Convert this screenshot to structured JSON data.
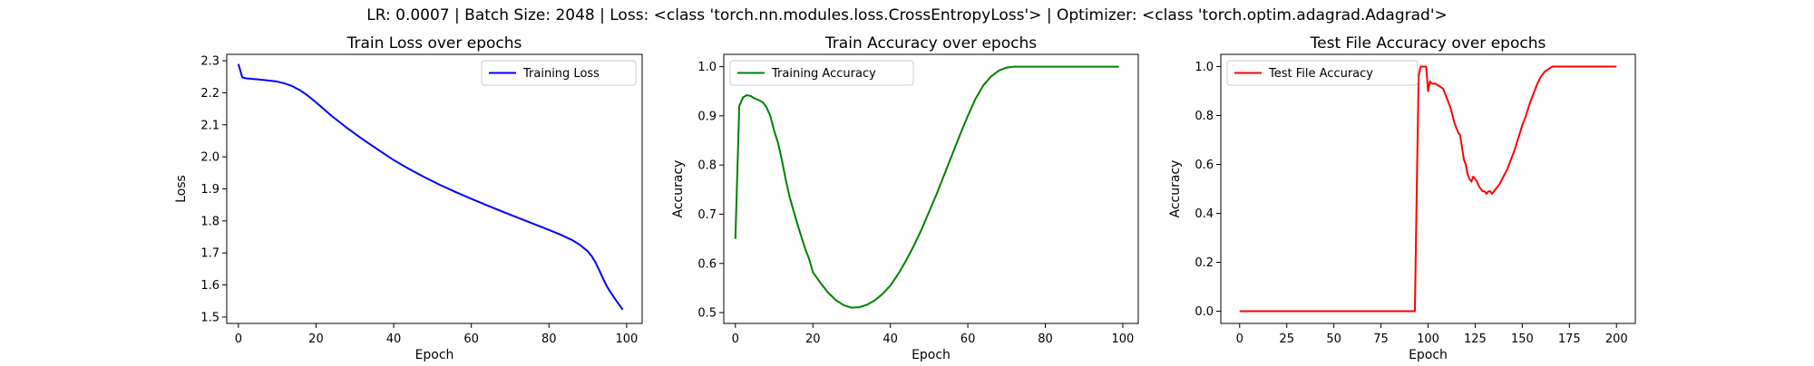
{
  "figure": {
    "suptitle": "LR: 0.0007 | Batch Size: 2048 | Loss: <class 'torch.nn.modules.loss.CrossEntropyLoss'> | Optimizer: <class 'torch.optim.adagrad.Adagrad'>"
  },
  "chart_data": [
    {
      "type": "line",
      "title": "Train Loss over epochs",
      "xlabel": "Epoch",
      "ylabel": "Loss",
      "xlim": [
        -3,
        104
      ],
      "ylim": [
        1.48,
        2.32
      ],
      "xticks": [
        0,
        20,
        40,
        60,
        80,
        100
      ],
      "yticks": [
        1.5,
        1.6,
        1.7,
        1.8,
        1.9,
        2.0,
        2.1,
        2.2,
        2.3
      ],
      "ytick_labels": [
        "1.5",
        "1.6",
        "1.7",
        "1.8",
        "1.9",
        "2.0",
        "2.1",
        "2.2",
        "2.3"
      ],
      "legend_position": "upper-right",
      "grid": false,
      "series": [
        {
          "name": "Training Loss",
          "color": "#0000ff",
          "x": [
            0,
            1,
            2,
            5,
            8,
            10,
            12,
            14,
            16,
            18,
            20,
            24,
            28,
            32,
            36,
            40,
            44,
            48,
            52,
            56,
            60,
            64,
            68,
            72,
            76,
            80,
            83,
            86,
            88,
            90,
            91,
            92,
            93,
            94,
            95,
            96,
            97,
            98,
            99
          ],
          "y": [
            2.29,
            2.248,
            2.245,
            2.242,
            2.238,
            2.235,
            2.229,
            2.22,
            2.207,
            2.19,
            2.17,
            2.128,
            2.09,
            2.055,
            2.022,
            1.99,
            1.962,
            1.936,
            1.912,
            1.89,
            1.869,
            1.849,
            1.829,
            1.81,
            1.791,
            1.772,
            1.757,
            1.74,
            1.725,
            1.705,
            1.69,
            1.67,
            1.645,
            1.618,
            1.594,
            1.575,
            1.557,
            1.54,
            1.523
          ]
        }
      ]
    },
    {
      "type": "line",
      "title": "Train Accuracy over epochs",
      "xlabel": "Epoch",
      "ylabel": "Accuracy",
      "xlim": [
        -3,
        104
      ],
      "ylim": [
        0.478,
        1.025
      ],
      "xticks": [
        0,
        20,
        40,
        60,
        80,
        100
      ],
      "yticks": [
        0.5,
        0.6,
        0.7,
        0.8,
        0.9,
        1.0
      ],
      "ytick_labels": [
        "0.5",
        "0.6",
        "0.7",
        "0.8",
        "0.9",
        "1.0"
      ],
      "legend_position": "upper-left",
      "grid": false,
      "series": [
        {
          "name": "Training Accuracy",
          "color": "#008000",
          "x": [
            0,
            1,
            2,
            3,
            4,
            5,
            6,
            7,
            8,
            9,
            10,
            11,
            12,
            13,
            14,
            16,
            18,
            19,
            20,
            22,
            24,
            26,
            28,
            30,
            32,
            34,
            36,
            38,
            40,
            42,
            44,
            46,
            48,
            50,
            52,
            54,
            56,
            58,
            60,
            62,
            64,
            66,
            68,
            70,
            72,
            74,
            80,
            90,
            99
          ],
          "y": [
            0.65,
            0.92,
            0.938,
            0.942,
            0.94,
            0.935,
            0.932,
            0.928,
            0.918,
            0.9,
            0.87,
            0.845,
            0.81,
            0.77,
            0.735,
            0.68,
            0.63,
            0.61,
            0.582,
            0.56,
            0.54,
            0.525,
            0.515,
            0.51,
            0.511,
            0.516,
            0.525,
            0.538,
            0.555,
            0.578,
            0.605,
            0.635,
            0.668,
            0.705,
            0.742,
            0.782,
            0.822,
            0.862,
            0.9,
            0.935,
            0.962,
            0.98,
            0.992,
            0.998,
            1.0,
            1.0,
            1.0,
            1.0,
            1.0
          ]
        }
      ]
    },
    {
      "type": "line",
      "title": "Test File Accuracy over epochs",
      "xlabel": "Epoch",
      "ylabel": "Accuracy",
      "xlim": [
        -10,
        210
      ],
      "ylim": [
        -0.05,
        1.05
      ],
      "xticks": [
        0,
        25,
        50,
        75,
        100,
        125,
        150,
        175,
        200
      ],
      "yticks": [
        0.0,
        0.2,
        0.4,
        0.6,
        0.8,
        1.0
      ],
      "ytick_labels": [
        "0.0",
        "0.2",
        "0.4",
        "0.6",
        "0.8",
        "1.0"
      ],
      "legend_position": "upper-left",
      "grid": false,
      "series": [
        {
          "name": "Test File Accuracy",
          "color": "#ff0000",
          "x": [
            0,
            93,
            94,
            95,
            96,
            97,
            98,
            99,
            100,
            101,
            102,
            103,
            104,
            106,
            108,
            109,
            110,
            111,
            112,
            114,
            116,
            117,
            118,
            119,
            120,
            121,
            122,
            123,
            124,
            125,
            126,
            127,
            128,
            129,
            130,
            131,
            132,
            133,
            134,
            136,
            138,
            140,
            142,
            144,
            146,
            148,
            150,
            152,
            154,
            156,
            158,
            160,
            162,
            164,
            166,
            168,
            170,
            172,
            175,
            180,
            190,
            200
          ],
          "y": [
            0.0,
            0.0,
            0.5,
            0.96,
            1.0,
            1.0,
            1.0,
            1.0,
            0.9,
            0.94,
            0.93,
            0.93,
            0.93,
            0.92,
            0.91,
            0.89,
            0.87,
            0.85,
            0.83,
            0.77,
            0.73,
            0.72,
            0.67,
            0.62,
            0.6,
            0.56,
            0.54,
            0.53,
            0.55,
            0.54,
            0.53,
            0.51,
            0.5,
            0.49,
            0.49,
            0.48,
            0.49,
            0.49,
            0.48,
            0.5,
            0.52,
            0.55,
            0.58,
            0.62,
            0.66,
            0.71,
            0.76,
            0.8,
            0.85,
            0.89,
            0.93,
            0.96,
            0.98,
            0.99,
            1.0,
            1.0,
            1.0,
            1.0,
            1.0,
            1.0,
            1.0,
            1.0
          ]
        }
      ]
    }
  ]
}
